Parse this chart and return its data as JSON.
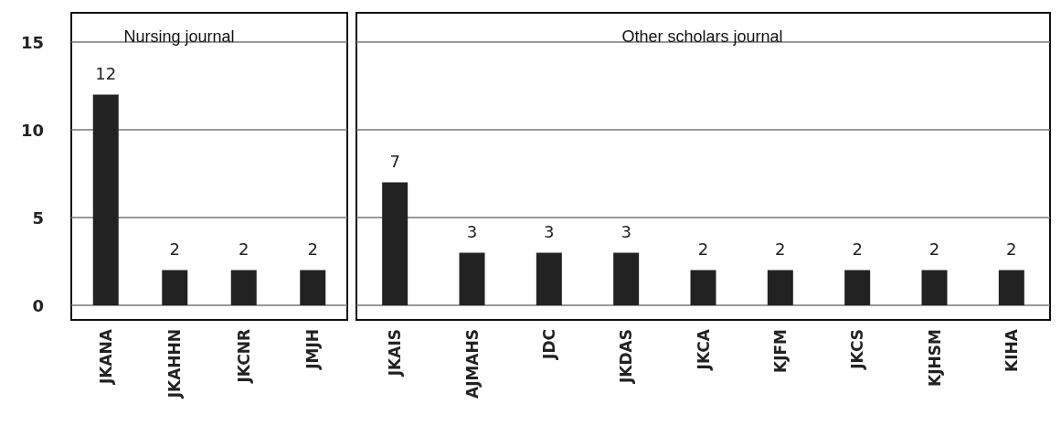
{
  "chart_data": [
    {
      "type": "bar",
      "title": "Nursing journal",
      "categories": [
        "JKANA",
        "JKAHHN",
        "JKCNR",
        "JMJH"
      ],
      "values": [
        12,
        2,
        2,
        2
      ],
      "color": "#222222",
      "ylim": [
        0,
        15
      ],
      "yticks": [
        0,
        5,
        10,
        15
      ],
      "grid": "y",
      "data_labels": true
    },
    {
      "type": "bar",
      "title": "Other scholars journal",
      "categories": [
        "JKAIS",
        "AJMAHS",
        "JDC",
        "JKDAS",
        "JKCA",
        "KJFM",
        "JKCS",
        "KJHSM",
        "KIHA"
      ],
      "values": [
        7,
        3,
        3,
        3,
        2,
        2,
        2,
        2,
        2
      ],
      "color": "#222222",
      "ylim": [
        0,
        15
      ],
      "yticks": [
        0,
        5,
        10,
        15
      ],
      "grid": "y",
      "data_labels": true,
      "tick_labels": "x"
    }
  ]
}
